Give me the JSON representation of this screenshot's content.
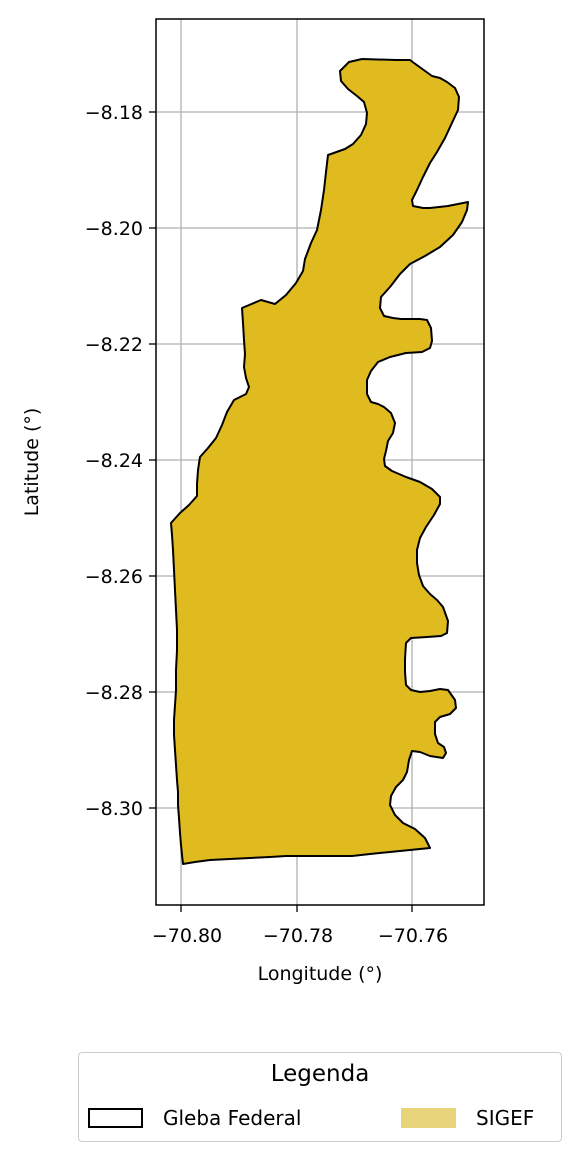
{
  "axes": {
    "xlabel": "Longitude (°)",
    "ylabel": "Latitude (°)",
    "xticks": [
      "−70.80",
      "−70.78",
      "−70.76"
    ],
    "yticks": [
      "−8.18",
      "−8.20",
      "−8.22",
      "−8.24",
      "−8.26",
      "−8.28",
      "−8.30"
    ],
    "grid": true
  },
  "legend": {
    "title": "Legenda",
    "items": [
      {
        "label": "Gleba Federal",
        "style": "outline",
        "color": "#000000"
      },
      {
        "label": "SIGEF",
        "style": "fill",
        "color": "#e8d47a"
      }
    ],
    "placement": "bottom-center"
  },
  "layers": {
    "sigef_fill": "#dfbb1f",
    "gleba_outline": "#000000"
  }
}
